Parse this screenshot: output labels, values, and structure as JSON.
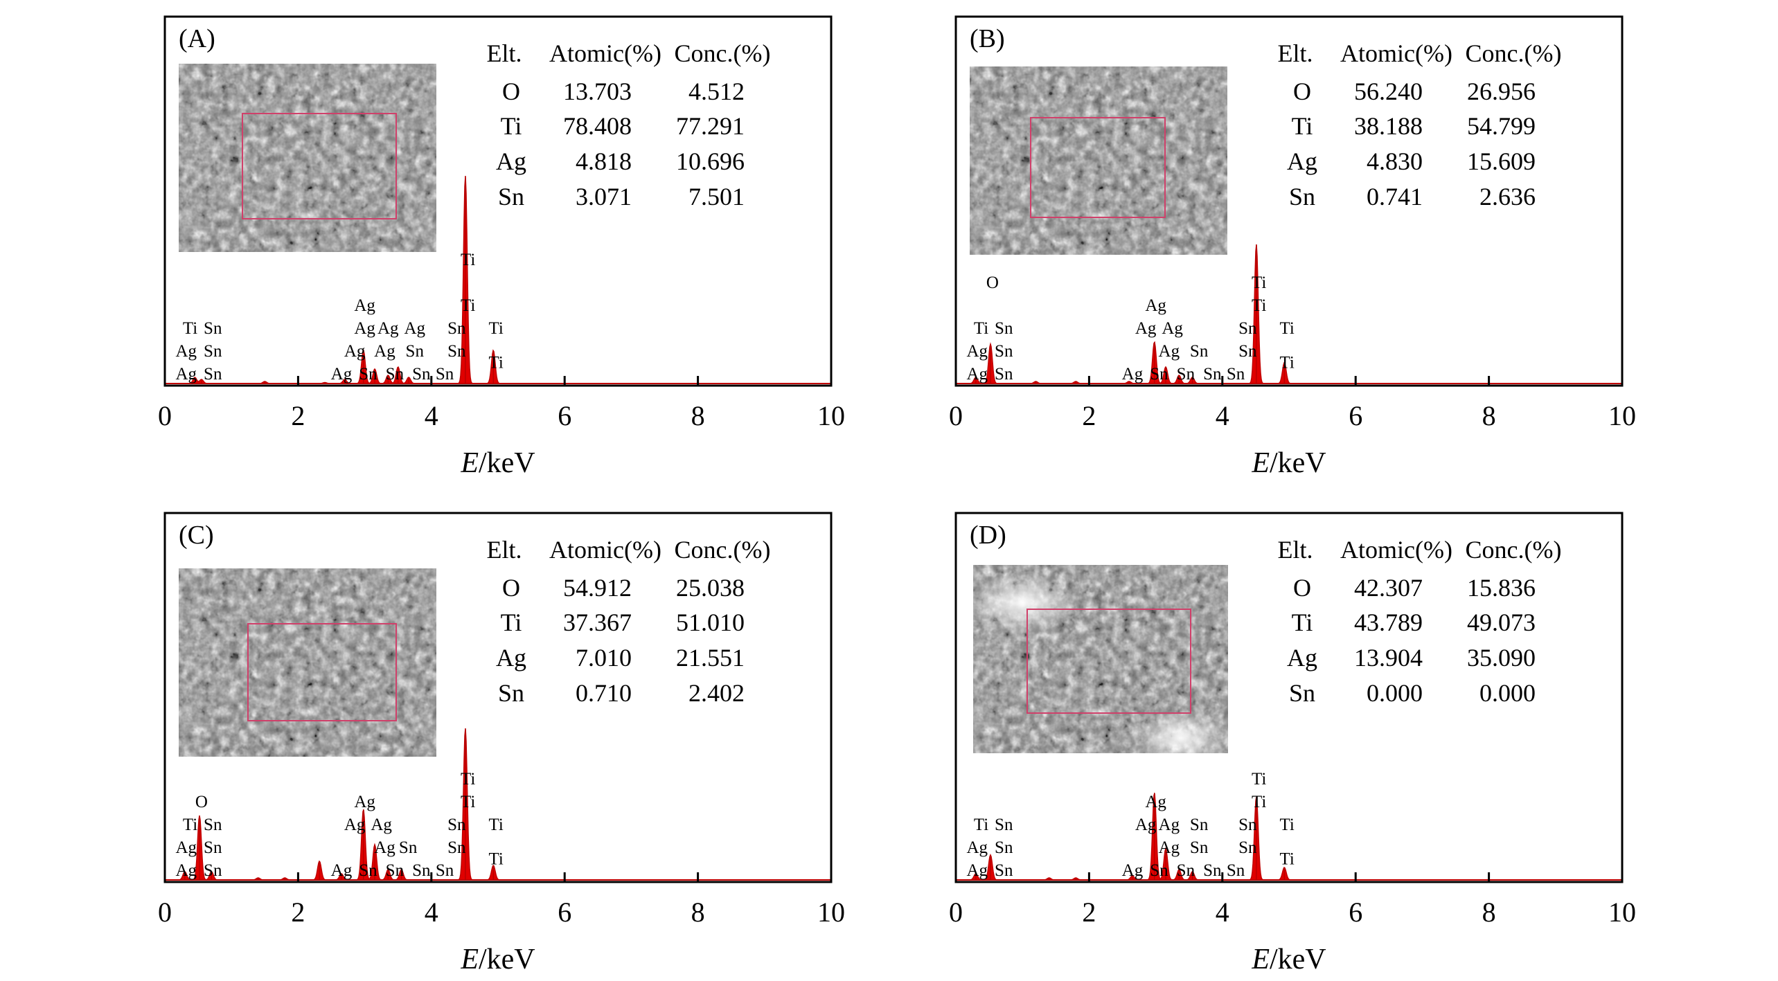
{
  "chart_data": [
    {
      "type": "area",
      "panel_label": "(A)",
      "xlabel_italic": "E",
      "xlabel_unit": "/keV",
      "xlim": [
        0,
        10
      ],
      "x_ticks": [
        0,
        2,
        4,
        6,
        8,
        10
      ],
      "grid": false,
      "table": {
        "headers": [
          "Elt.",
          "Atomic(%)",
          "Conc.(%)"
        ],
        "rows": [
          [
            "O",
            "13.703",
            "4.512"
          ],
          [
            "Ti",
            "78.408",
            "77.291"
          ],
          [
            "Ag",
            "4.818",
            "10.696"
          ],
          [
            "Sn",
            "3.071",
            "7.501"
          ]
        ]
      },
      "peaks": [
        {
          "x": 0.45,
          "h": 0.03
        },
        {
          "x": 0.55,
          "h": 0.02
        },
        {
          "x": 1.5,
          "h": 0.01
        },
        {
          "x": 2.4,
          "h": 0.005
        },
        {
          "x": 2.7,
          "h": 0.02
        },
        {
          "x": 2.98,
          "h": 0.16
        },
        {
          "x": 3.15,
          "h": 0.07
        },
        {
          "x": 3.35,
          "h": 0.04
        },
        {
          "x": 3.5,
          "h": 0.08
        },
        {
          "x": 3.66,
          "h": 0.03
        },
        {
          "x": 4.51,
          "h": 1.0
        },
        {
          "x": 4.93,
          "h": 0.16
        }
      ],
      "annotations": [
        {
          "text": "Ti",
          "x": 0.38,
          "row": 3
        },
        {
          "text": "Sn",
          "x": 0.72,
          "row": 3
        },
        {
          "text": "Ag",
          "x": 0.32,
          "row": 2
        },
        {
          "text": "Sn",
          "x": 0.72,
          "row": 2
        },
        {
          "text": "Ag",
          "x": 0.32,
          "row": 1
        },
        {
          "text": "Sn",
          "x": 0.72,
          "row": 1
        },
        {
          "text": "Ag",
          "x": 3.0,
          "row": 4
        },
        {
          "text": "Ag",
          "x": 3.0,
          "row": 3
        },
        {
          "text": "Ag",
          "x": 3.35,
          "row": 3
        },
        {
          "text": "Ag",
          "x": 3.75,
          "row": 3
        },
        {
          "text": "Ag",
          "x": 2.85,
          "row": 2
        },
        {
          "text": "Ag",
          "x": 3.3,
          "row": 2
        },
        {
          "text": "Sn",
          "x": 3.75,
          "row": 2
        },
        {
          "text": "Ag",
          "x": 2.65,
          "row": 1
        },
        {
          "text": "Sn",
          "x": 3.05,
          "row": 1
        },
        {
          "text": "Sn",
          "x": 3.45,
          "row": 1
        },
        {
          "text": "Sn",
          "x": 3.85,
          "row": 1
        },
        {
          "text": "Sn",
          "x": 4.2,
          "row": 1
        },
        {
          "text": "Ti",
          "x": 4.55,
          "row": 6
        },
        {
          "text": "Ti",
          "x": 4.55,
          "row": 4
        },
        {
          "text": "Sn",
          "x": 4.38,
          "row": 3
        },
        {
          "text": "Sn",
          "x": 4.38,
          "row": 2
        },
        {
          "text": "Ti",
          "x": 4.97,
          "row": 3
        },
        {
          "text": "Ti",
          "x": 4.97,
          "row": 1.5
        }
      ]
    },
    {
      "type": "area",
      "panel_label": "(B)",
      "xlabel_italic": "E",
      "xlabel_unit": "/keV",
      "xlim": [
        0,
        10
      ],
      "x_ticks": [
        0,
        2,
        4,
        6,
        8,
        10
      ],
      "grid": false,
      "table": {
        "headers": [
          "Elt.",
          "Atomic(%)",
          "Conc.(%)"
        ],
        "rows": [
          [
            "O",
            "56.240",
            "26.956"
          ],
          [
            "Ti",
            "38.188",
            "54.799"
          ],
          [
            "Ag",
            "4.830",
            "15.609"
          ],
          [
            "Sn",
            "0.741",
            "2.636"
          ]
        ]
      },
      "peaks": [
        {
          "x": 0.3,
          "h": 0.03
        },
        {
          "x": 0.52,
          "h": 0.19
        },
        {
          "x": 1.2,
          "h": 0.01
        },
        {
          "x": 1.8,
          "h": 0.01
        },
        {
          "x": 2.6,
          "h": 0.01
        },
        {
          "x": 2.98,
          "h": 0.2
        },
        {
          "x": 3.15,
          "h": 0.08
        },
        {
          "x": 3.35,
          "h": 0.04
        },
        {
          "x": 3.55,
          "h": 0.03
        },
        {
          "x": 4.51,
          "h": 0.67
        },
        {
          "x": 4.93,
          "h": 0.1
        }
      ],
      "annotations": [
        {
          "text": "O",
          "x": 0.55,
          "row": 5
        },
        {
          "text": "Ti",
          "x": 0.38,
          "row": 3
        },
        {
          "text": "Sn",
          "x": 0.72,
          "row": 3
        },
        {
          "text": "Ag",
          "x": 0.32,
          "row": 2
        },
        {
          "text": "Sn",
          "x": 0.72,
          "row": 2
        },
        {
          "text": "Ag",
          "x": 0.32,
          "row": 1
        },
        {
          "text": "Sn",
          "x": 0.72,
          "row": 1
        },
        {
          "text": "Ag",
          "x": 3.0,
          "row": 4
        },
        {
          "text": "Ag",
          "x": 2.85,
          "row": 3
        },
        {
          "text": "Ag",
          "x": 3.25,
          "row": 3
        },
        {
          "text": "Ag",
          "x": 3.2,
          "row": 2
        },
        {
          "text": "Sn",
          "x": 3.65,
          "row": 2
        },
        {
          "text": "Ag",
          "x": 2.65,
          "row": 1
        },
        {
          "text": "Sn",
          "x": 3.05,
          "row": 1
        },
        {
          "text": "Sn",
          "x": 3.45,
          "row": 1
        },
        {
          "text": "Sn",
          "x": 3.85,
          "row": 1
        },
        {
          "text": "Sn",
          "x": 4.2,
          "row": 1
        },
        {
          "text": "Ti",
          "x": 4.55,
          "row": 5
        },
        {
          "text": "Ti",
          "x": 4.55,
          "row": 4
        },
        {
          "text": "Sn",
          "x": 4.38,
          "row": 3
        },
        {
          "text": "Sn",
          "x": 4.38,
          "row": 2
        },
        {
          "text": "Ti",
          "x": 4.97,
          "row": 3
        },
        {
          "text": "Ti",
          "x": 4.97,
          "row": 1.5
        }
      ]
    },
    {
      "type": "area",
      "panel_label": "(C)",
      "xlabel_italic": "E",
      "xlabel_unit": "/keV",
      "xlim": [
        0,
        10
      ],
      "x_ticks": [
        0,
        2,
        4,
        6,
        8,
        10
      ],
      "grid": false,
      "table": {
        "headers": [
          "Elt.",
          "Atomic(%)",
          "Conc.(%)"
        ],
        "rows": [
          [
            "O",
            "54.912",
            "25.038"
          ],
          [
            "Ti",
            "37.367",
            "51.010"
          ],
          [
            "Ag",
            "7.010",
            "21.551"
          ],
          [
            "Sn",
            "0.710",
            "2.402"
          ]
        ]
      },
      "peaks": [
        {
          "x": 0.3,
          "h": 0.04
        },
        {
          "x": 0.52,
          "h": 0.31
        },
        {
          "x": 0.7,
          "h": 0.04
        },
        {
          "x": 1.4,
          "h": 0.01
        },
        {
          "x": 1.8,
          "h": 0.01
        },
        {
          "x": 2.32,
          "h": 0.09
        },
        {
          "x": 2.65,
          "h": 0.03
        },
        {
          "x": 2.98,
          "h": 0.34
        },
        {
          "x": 3.15,
          "h": 0.17
        },
        {
          "x": 3.35,
          "h": 0.05
        },
        {
          "x": 3.55,
          "h": 0.05
        },
        {
          "x": 4.51,
          "h": 0.73
        },
        {
          "x": 4.93,
          "h": 0.07
        }
      ],
      "annotations": [
        {
          "text": "O",
          "x": 0.55,
          "row": 4
        },
        {
          "text": "Ti",
          "x": 0.38,
          "row": 3
        },
        {
          "text": "Sn",
          "x": 0.72,
          "row": 3
        },
        {
          "text": "Ag",
          "x": 0.32,
          "row": 2
        },
        {
          "text": "Sn",
          "x": 0.72,
          "row": 2
        },
        {
          "text": "Ag",
          "x": 0.32,
          "row": 1
        },
        {
          "text": "Sn",
          "x": 0.72,
          "row": 1
        },
        {
          "text": "Ag",
          "x": 3.0,
          "row": 4
        },
        {
          "text": "Ag",
          "x": 2.85,
          "row": 3
        },
        {
          "text": "Ag",
          "x": 3.25,
          "row": 3
        },
        {
          "text": "Ag",
          "x": 3.3,
          "row": 2
        },
        {
          "text": "Sn",
          "x": 3.65,
          "row": 2
        },
        {
          "text": "Ag",
          "x": 2.65,
          "row": 1
        },
        {
          "text": "Sn",
          "x": 3.05,
          "row": 1
        },
        {
          "text": "Sn",
          "x": 3.45,
          "row": 1
        },
        {
          "text": "Sn",
          "x": 3.85,
          "row": 1
        },
        {
          "text": "Sn",
          "x": 4.2,
          "row": 1
        },
        {
          "text": "Ti",
          "x": 4.55,
          "row": 5
        },
        {
          "text": "Ti",
          "x": 4.55,
          "row": 4
        },
        {
          "text": "Sn",
          "x": 4.38,
          "row": 3
        },
        {
          "text": "Sn",
          "x": 4.38,
          "row": 2
        },
        {
          "text": "Ti",
          "x": 4.97,
          "row": 3
        },
        {
          "text": "Ti",
          "x": 4.97,
          "row": 1.5
        }
      ]
    },
    {
      "type": "area",
      "panel_label": "(D)",
      "xlabel_italic": "E",
      "xlabel_unit": "/keV",
      "xlim": [
        0,
        10
      ],
      "x_ticks": [
        0,
        2,
        4,
        6,
        8,
        10
      ],
      "grid": false,
      "table": {
        "headers": [
          "Elt.",
          "Atomic(%)",
          "Conc.(%)"
        ],
        "rows": [
          [
            "O",
            "42.307",
            "15.836"
          ],
          [
            "Ti",
            "43.789",
            "49.073"
          ],
          [
            "Ag",
            "13.904",
            "35.090"
          ],
          [
            "Sn",
            "0.000",
            "0.000"
          ]
        ]
      },
      "peaks": [
        {
          "x": 0.3,
          "h": 0.03
        },
        {
          "x": 0.52,
          "h": 0.12
        },
        {
          "x": 1.4,
          "h": 0.01
        },
        {
          "x": 1.8,
          "h": 0.01
        },
        {
          "x": 2.65,
          "h": 0.02
        },
        {
          "x": 2.98,
          "h": 0.42
        },
        {
          "x": 3.15,
          "h": 0.15
        },
        {
          "x": 3.35,
          "h": 0.05
        },
        {
          "x": 3.55,
          "h": 0.04
        },
        {
          "x": 4.51,
          "h": 0.4
        },
        {
          "x": 4.93,
          "h": 0.06
        }
      ],
      "annotations": [
        {
          "text": "Ti",
          "x": 0.38,
          "row": 3
        },
        {
          "text": "Sn",
          "x": 0.72,
          "row": 3
        },
        {
          "text": "Ag",
          "x": 0.32,
          "row": 2
        },
        {
          "text": "Sn",
          "x": 0.72,
          "row": 2
        },
        {
          "text": "Ag",
          "x": 0.32,
          "row": 1
        },
        {
          "text": "Sn",
          "x": 0.72,
          "row": 1
        },
        {
          "text": "Ag",
          "x": 3.0,
          "row": 4
        },
        {
          "text": "Ag",
          "x": 2.85,
          "row": 3
        },
        {
          "text": "Ag",
          "x": 3.2,
          "row": 3
        },
        {
          "text": "Sn",
          "x": 3.65,
          "row": 3
        },
        {
          "text": "Ag",
          "x": 3.2,
          "row": 2
        },
        {
          "text": "Sn",
          "x": 3.65,
          "row": 2
        },
        {
          "text": "Ag",
          "x": 2.65,
          "row": 1
        },
        {
          "text": "Sn",
          "x": 3.05,
          "row": 1
        },
        {
          "text": "Sn",
          "x": 3.45,
          "row": 1
        },
        {
          "text": "Sn",
          "x": 3.85,
          "row": 1
        },
        {
          "text": "Sn",
          "x": 4.2,
          "row": 1
        },
        {
          "text": "Ti",
          "x": 4.55,
          "row": 5
        },
        {
          "text": "Ti",
          "x": 4.55,
          "row": 4
        },
        {
          "text": "Sn",
          "x": 4.38,
          "row": 3
        },
        {
          "text": "Sn",
          "x": 4.38,
          "row": 2
        },
        {
          "text": "Ti",
          "x": 4.97,
          "row": 3
        },
        {
          "text": "Ti",
          "x": 4.97,
          "row": 1.5
        }
      ]
    }
  ]
}
